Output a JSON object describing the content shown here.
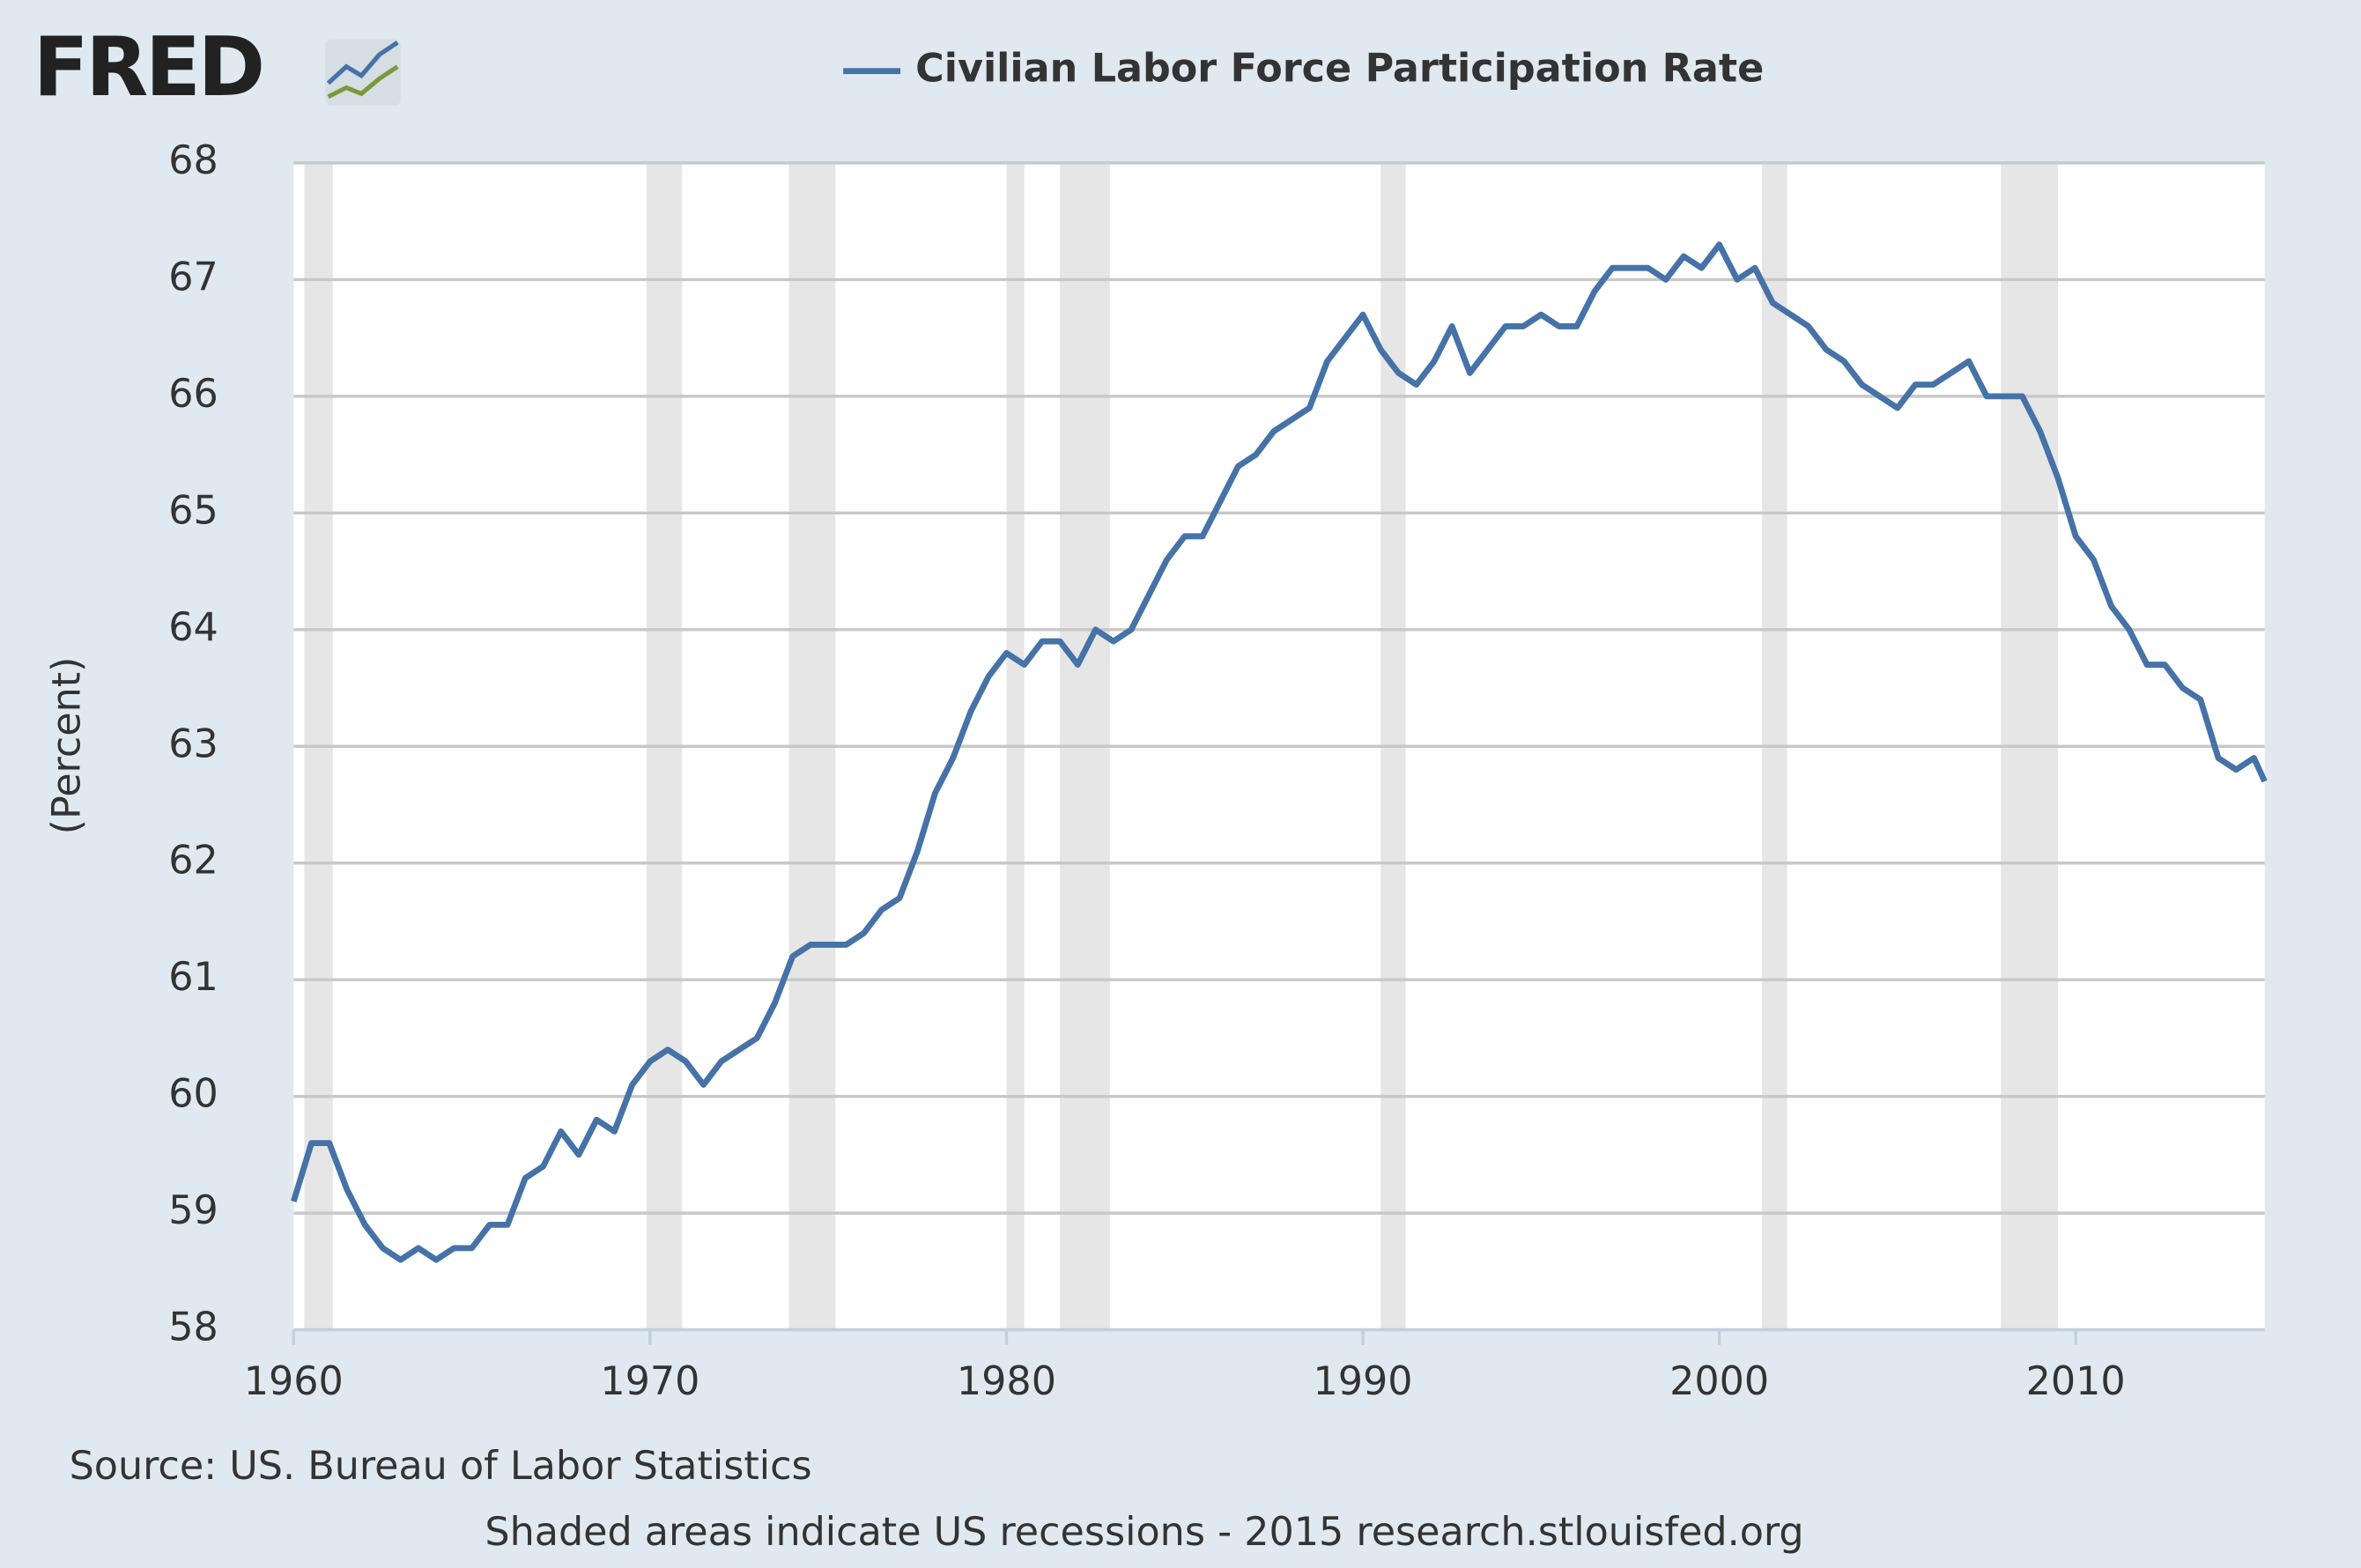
{
  "logo": "FRED",
  "chart_data": {
    "type": "line",
    "series": [
      {
        "name": "Civilian Labor Force Participation Rate",
        "color": "#4572a7",
        "x": [
          1960.0,
          1960.5,
          1961.0,
          1961.5,
          1962.0,
          1962.5,
          1963.0,
          1963.5,
          1964.0,
          1964.5,
          1965.0,
          1965.5,
          1966.0,
          1966.5,
          1967.0,
          1967.5,
          1968.0,
          1968.5,
          1969.0,
          1969.5,
          1970.0,
          1970.5,
          1971.0,
          1971.5,
          1972.0,
          1972.5,
          1973.0,
          1973.5,
          1974.0,
          1974.5,
          1975.0,
          1975.5,
          1976.0,
          1976.5,
          1977.0,
          1977.5,
          1978.0,
          1978.5,
          1979.0,
          1979.5,
          1980.0,
          1980.5,
          1981.0,
          1981.5,
          1982.0,
          1982.5,
          1983.0,
          1983.5,
          1984.0,
          1984.5,
          1985.0,
          1985.5,
          1986.0,
          1986.5,
          1987.0,
          1987.5,
          1988.0,
          1988.5,
          1989.0,
          1989.5,
          1990.0,
          1990.5,
          1991.0,
          1991.5,
          1992.0,
          1992.5,
          1993.0,
          1993.5,
          1994.0,
          1994.5,
          1995.0,
          1995.5,
          1996.0,
          1996.5,
          1997.0,
          1997.5,
          1998.0,
          1998.5,
          1999.0,
          1999.5,
          2000.0,
          2000.5,
          2001.0,
          2001.5,
          2002.0,
          2002.5,
          2003.0,
          2003.5,
          2004.0,
          2004.5,
          2005.0,
          2005.5,
          2006.0,
          2006.5,
          2007.0,
          2007.5,
          2008.0,
          2008.5,
          2009.0,
          2009.5,
          2010.0,
          2010.5,
          2011.0,
          2011.5,
          2012.0,
          2012.5,
          2013.0,
          2013.5,
          2014.0,
          2014.5,
          2015.0,
          2015.3
        ],
        "values": [
          59.1,
          59.6,
          59.6,
          59.2,
          58.9,
          58.7,
          58.6,
          58.7,
          58.6,
          58.7,
          58.7,
          58.9,
          58.9,
          59.3,
          59.4,
          59.7,
          59.5,
          59.8,
          59.7,
          60.1,
          60.3,
          60.4,
          60.3,
          60.1,
          60.3,
          60.4,
          60.5,
          60.8,
          61.2,
          61.3,
          61.3,
          61.3,
          61.4,
          61.6,
          61.7,
          62.1,
          62.6,
          62.9,
          63.3,
          63.6,
          63.8,
          63.7,
          63.9,
          63.9,
          63.7,
          64.0,
          63.9,
          64.0,
          64.3,
          64.6,
          64.8,
          64.8,
          65.1,
          65.4,
          65.5,
          65.7,
          65.8,
          65.9,
          66.3,
          66.5,
          66.7,
          66.4,
          66.2,
          66.1,
          66.3,
          66.6,
          66.2,
          66.4,
          66.6,
          66.6,
          66.7,
          66.6,
          66.6,
          66.9,
          67.1,
          67.1,
          67.1,
          67.0,
          67.2,
          67.1,
          67.3,
          67.0,
          67.1,
          66.8,
          66.7,
          66.6,
          66.4,
          66.3,
          66.1,
          66.0,
          65.9,
          66.1,
          66.1,
          66.2,
          66.3,
          66.0,
          66.0,
          66.0,
          65.7,
          65.3,
          64.8,
          64.6,
          64.2,
          64.0,
          63.7,
          63.7,
          63.5,
          63.4,
          62.9,
          62.8,
          62.9,
          62.7
        ]
      }
    ],
    "recessions": [
      [
        1960.3,
        1961.1
      ],
      [
        1969.9,
        1970.9
      ],
      [
        1973.9,
        1975.2
      ],
      [
        1980.0,
        1980.5
      ],
      [
        1981.5,
        1982.9
      ],
      [
        1990.5,
        1991.2
      ],
      [
        2001.2,
        2001.9
      ],
      [
        2007.9,
        2009.5
      ]
    ],
    "recession_color": "#e6e6e6",
    "xlim": [
      1960,
      2015.3
    ],
    "xticks": [
      1960,
      1970,
      1980,
      1990,
      2000,
      2010
    ],
    "ylim": [
      58,
      68
    ],
    "yticks": [
      58,
      59,
      60,
      61,
      62,
      63,
      64,
      65,
      66,
      67,
      68
    ],
    "grid": true,
    "ylabel": "(Percent)",
    "source": "Source: US. Bureau of Labor Statistics",
    "note": "Shaded areas indicate US recessions - 2015 research.stlouisfed.org"
  }
}
